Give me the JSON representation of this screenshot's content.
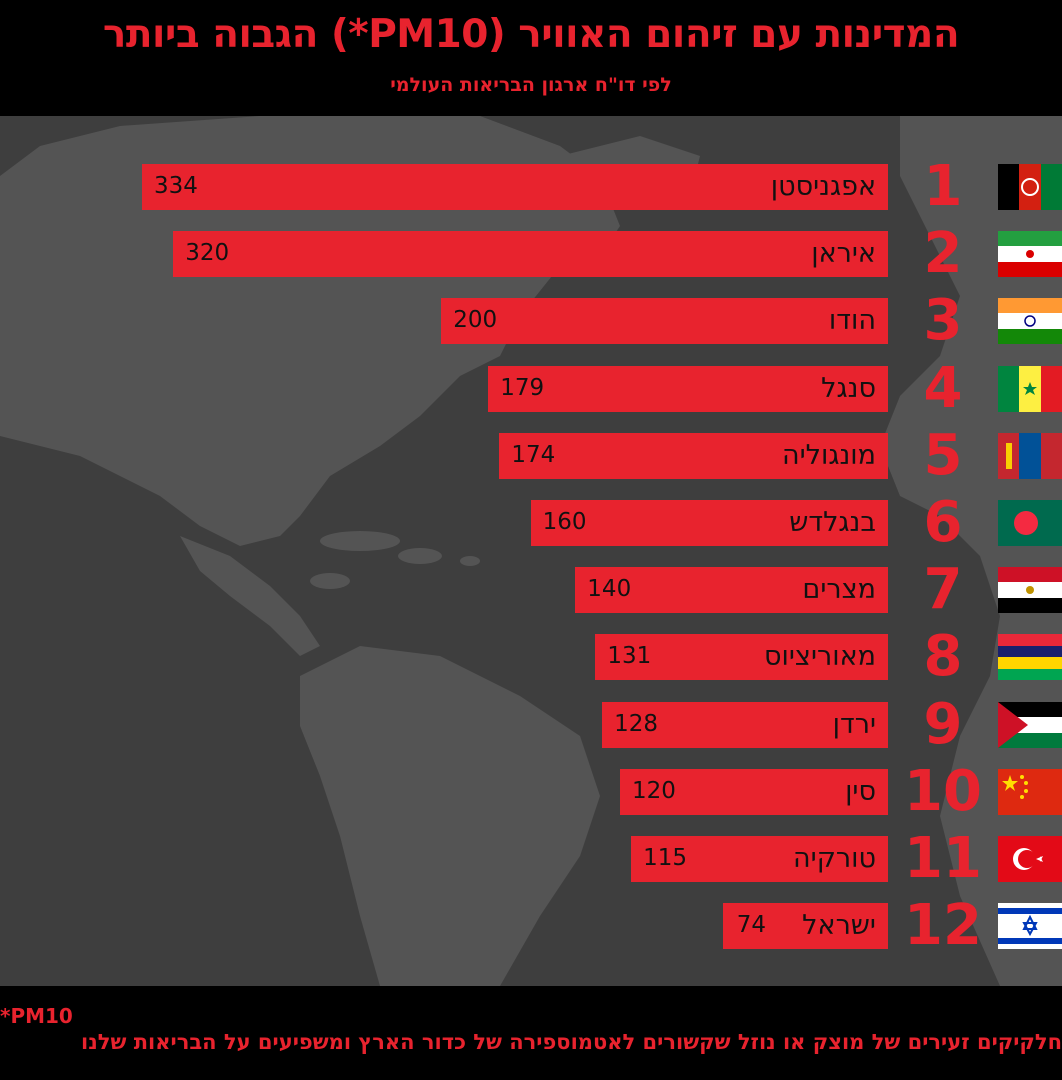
{
  "header": {
    "title": "המדינות עם זיהום האוויר (PM10*) הגבוה ביותר",
    "subtitle": "לפי דו\"ח ארגון הבריאות העולמי"
  },
  "footer": {
    "note_title": "*PM10",
    "note_text": "חלקיקים זעירים של מוצק או נוזל שקשורים לאטמוספירה של כדור הארץ ומשפיעים על הבריאות שלנו"
  },
  "colors": {
    "accent": "#e8232e",
    "background": "#3e3e3e",
    "header_bg": "#000000"
  },
  "chart_data": {
    "type": "bar",
    "orientation": "horizontal",
    "title": "המדינות עם זיהום האוויר (PM10*) הגבוה ביותר",
    "subtitle": "לפי דו\"ח ארגון הבריאות העולמי",
    "categories": [
      "אפגניסטן",
      "איראן",
      "הודו",
      "סנגל",
      "מונגוליה",
      "בנגלדש",
      "מצרים",
      "מאוריציוס",
      "ירדן",
      "סין",
      "טורקיה",
      "ישראל"
    ],
    "ranks": [
      "1",
      "2",
      "3",
      "4",
      "5",
      "6",
      "7",
      "8",
      "9",
      "10",
      "11",
      "12"
    ],
    "values": [
      334,
      320,
      200,
      179,
      174,
      160,
      140,
      131,
      128,
      120,
      115,
      74
    ],
    "flags": [
      "afghanistan-flag-icon",
      "iran-flag-icon",
      "india-flag-icon",
      "senegal-flag-icon",
      "mongolia-flag-icon",
      "bangladesh-flag-icon",
      "egypt-flag-icon",
      "mauritius-flag-icon",
      "jordan-flag-icon",
      "china-flag-icon",
      "turkey-flag-icon",
      "israel-flag-icon"
    ]
  }
}
